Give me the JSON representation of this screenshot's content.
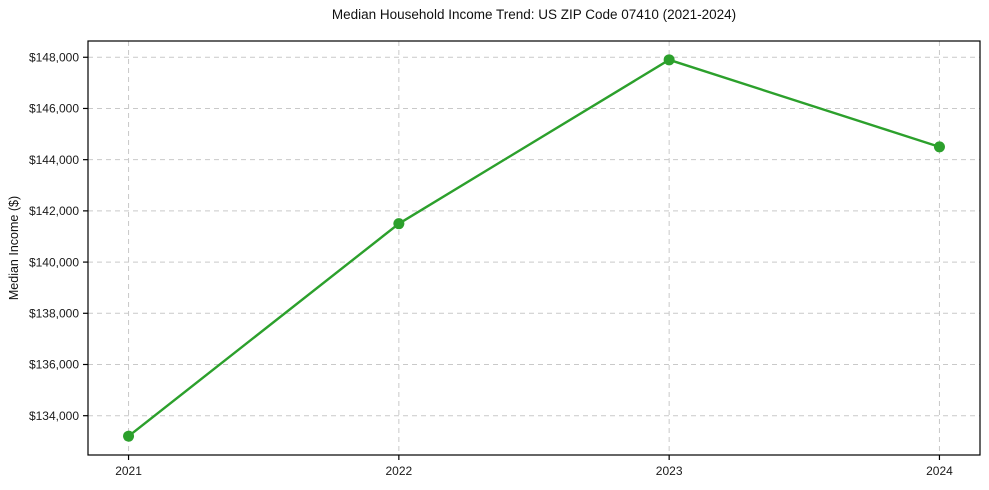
{
  "chart_data": {
    "type": "line",
    "title": "Median Household Income Trend: US ZIP Code 07410 (2021-2024)",
    "xlabel": "",
    "ylabel": "Median Income ($)",
    "categories": [
      2021,
      2022,
      2023,
      2024
    ],
    "x_tick_labels": [
      "2021",
      "2022",
      "2023",
      "2024"
    ],
    "series": [
      {
        "name": "Median Household Income",
        "values": [
          133200,
          141500,
          147900,
          144500
        ]
      }
    ],
    "y_ticks": [
      134000,
      136000,
      138000,
      140000,
      142000,
      144000,
      146000,
      148000
    ],
    "y_tick_labels": [
      "$134,000",
      "$136,000",
      "$138,000",
      "$140,000",
      "$142,000",
      "$144,000",
      "$146,000",
      "$148,000"
    ],
    "xlim": [
      2020.85,
      2024.15
    ],
    "ylim": [
      132465,
      148635
    ],
    "grid": "dashed",
    "legend": "none",
    "marker": "circle",
    "colors": {
      "line": "#2ca02c",
      "marker": "#2ca02c",
      "grid": "#c9c9c9",
      "axis": "#000000",
      "tick_text": "#1a1a1a",
      "background": "#ffffff"
    }
  }
}
